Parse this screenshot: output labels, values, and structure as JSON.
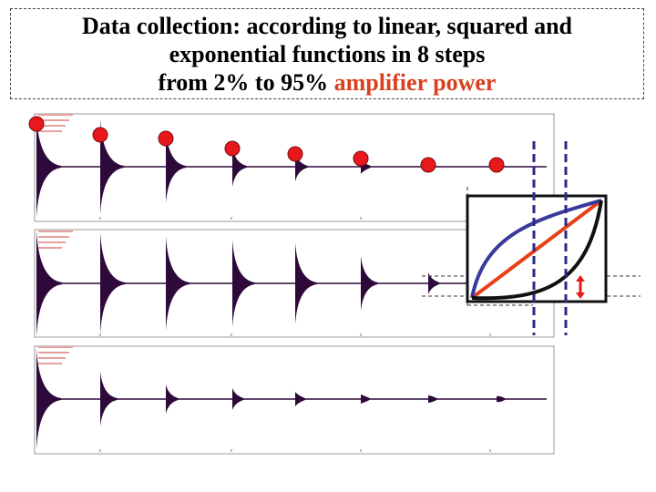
{
  "title": {
    "line1": "Data collection: according to linear, squared and",
    "line2": "exponential functions in 8 steps",
    "line3_prefix": "from 2% to 95% ",
    "line3_accent": "amplifier power"
  },
  "colors": {
    "accent": "#d9401f",
    "signal": "#2e0a3a",
    "marker": "#e8191c",
    "linear_curve": "#e8401c",
    "squared_curve": "#3a3a9a",
    "exponential_curve": "#111111",
    "dashed_guides": "#2a2a8a"
  },
  "panels": [
    {
      "name": "panel-1",
      "decay_heights": [
        55,
        52,
        40,
        22,
        16,
        8,
        0,
        0
      ]
    },
    {
      "name": "panel-2",
      "decay_heights": [
        58,
        56,
        52,
        48,
        45,
        30,
        12,
        0
      ]
    },
    {
      "name": "panel-3",
      "decay_heights": [
        55,
        30,
        16,
        12,
        8,
        5,
        4,
        3
      ]
    }
  ],
  "markers": {
    "count": 8
  },
  "inset": {
    "curves": [
      "linear",
      "squared",
      "exponential"
    ],
    "icons": [
      "double-arrow-icon"
    ]
  }
}
